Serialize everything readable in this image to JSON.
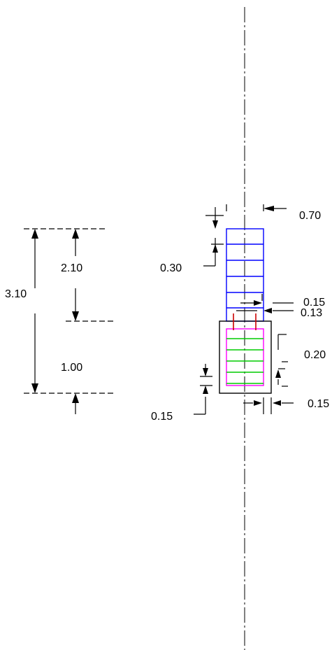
{
  "colors": {
    "background": "#ffffff",
    "ink": "#000000",
    "column_rebar": "#0000ff",
    "footing_rebar": "#00cc00",
    "footing_stirrup": "#ff00ff",
    "starter_bar": "#cc0000"
  },
  "dimensions": {
    "total_height": "3.10",
    "column_height": "2.10",
    "footing_depth": "1.00",
    "column_width": "0.70",
    "top_offset": "0.30",
    "cover_a": "0.15",
    "cover_b": "0.13",
    "footing_offset": "0.20",
    "footing_cover_right": "0.15",
    "footing_cover_bottom": "0.15"
  }
}
